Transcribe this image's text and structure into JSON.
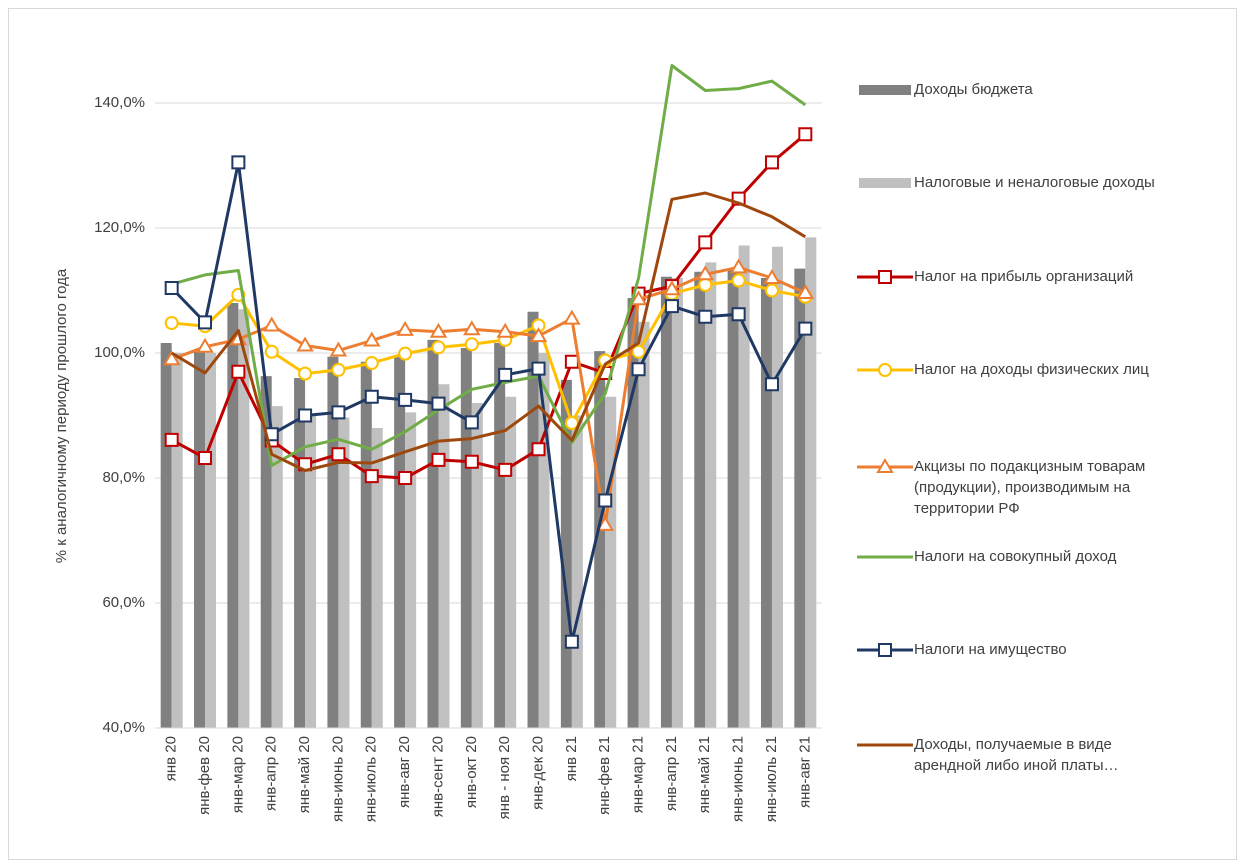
{
  "chart_data": {
    "type": "combo",
    "y_label": "% к аналогичному периоду прошлого года",
    "categories": [
      "янв 20",
      "янв-фев 20",
      "янв-мар 20",
      "янв-апр 20",
      "янв-май 20",
      "янв-июнь 20",
      "янв-июль 20",
      "янв-авг 20",
      "янв-сент 20",
      "янв-окт 20",
      "янв - ноя 20",
      "янв-дек 20",
      "янв 21",
      "янв-фев 21",
      "янв-мар 21",
      "янв-апр 21",
      "янв-май 21",
      "янв-июнь 21",
      "янв-июль 21",
      "янв-авг 21"
    ],
    "ylim": [
      40,
      150
    ],
    "yticks": [
      {
        "value": 40,
        "label": "40,0%"
      },
      {
        "value": 60,
        "label": "60,0%"
      },
      {
        "value": 80,
        "label": "80,0%"
      },
      {
        "value": 100,
        "label": "100,0%"
      },
      {
        "value": 120,
        "label": "120,0%"
      },
      {
        "value": 140,
        "label": "140,0%"
      }
    ],
    "grid": true,
    "legend": "right",
    "series": [
      {
        "name": "Доходы бюджета",
        "type": "bar",
        "color": "#808080",
        "values": [
          101.6,
          100.2,
          108,
          96.3,
          96,
          99.4,
          98.6,
          99.4,
          102.1,
          100.8,
          101.6,
          106.6,
          95.7,
          100.3,
          108.8,
          112.2,
          113,
          113.5,
          112,
          113.5
        ]
      },
      {
        "name": "Налоговые и неналоговые доходы",
        "type": "bar",
        "color": "#c0c0c0",
        "values": [
          100,
          100,
          107,
          91.5,
          90,
          89.7,
          88,
          90.5,
          95,
          92,
          93,
          100,
          90,
          93,
          105,
          112,
          114.5,
          117.2,
          117,
          118.5
        ]
      },
      {
        "name": "Налог на прибыль организаций",
        "type": "line",
        "marker": "square",
        "color": "#c00000",
        "values": [
          86.1,
          83.2,
          97,
          86,
          82.2,
          83.8,
          80.3,
          80,
          82.9,
          82.6,
          81.3,
          84.6,
          98.6,
          96.8,
          109.5,
          110.7,
          117.7,
          124.7,
          130.5,
          135
        ]
      },
      {
        "name": "Налог на доходы физических лиц",
        "type": "line",
        "marker": "circle",
        "color": "#ffc000",
        "values": [
          104.8,
          104.3,
          109.3,
          100.2,
          96.7,
          97.3,
          98.4,
          99.9,
          100.9,
          101.4,
          102.1,
          104.4,
          88.8,
          98.8,
          100.2,
          109.5,
          110.9,
          111.6,
          110,
          109
        ]
      },
      {
        "name": "Акцизы по подакцизным товарам (продукции), производимым на территории РФ",
        "type": "line",
        "marker": "triangle",
        "color": "#ed7d31",
        "values": [
          99,
          101,
          102.2,
          104.4,
          101.2,
          100.4,
          102,
          103.7,
          103.4,
          103.8,
          103.4,
          102.7,
          105.5,
          72.5,
          108.6,
          110.2,
          112.6,
          113.7,
          112,
          109.6
        ]
      },
      {
        "name": "Налоги на совокупный доход",
        "type": "line",
        "color": "#70ad47",
        "values": [
          111,
          112.5,
          113.2,
          82,
          85,
          86.2,
          84.6,
          87.4,
          90.9,
          94.2,
          95.3,
          96.3,
          85.7,
          93.5,
          112,
          146,
          142,
          142.3,
          143.5,
          139.7
        ]
      },
      {
        "name": "Налоги на имущество",
        "type": "line",
        "marker": "square",
        "color": "#203864",
        "values": [
          110.4,
          104.9,
          130.5,
          87,
          90,
          90.5,
          93,
          92.5,
          91.9,
          88.9,
          96.5,
          97.5,
          53.8,
          76.4,
          97.4,
          107.5,
          105.8,
          106.2,
          95,
          103.9
        ]
      },
      {
        "name": "Доходы, получаемые в виде арендной либо иной платы…",
        "type": "line",
        "color": "#9e480e",
        "values": [
          100,
          96.8,
          103.6,
          83.8,
          81.2,
          82.5,
          82.4,
          84.2,
          85.9,
          86.3,
          87.6,
          91.5,
          86,
          98.2,
          101.6,
          124.6,
          125.6,
          124,
          121.8,
          118.6
        ]
      }
    ]
  }
}
